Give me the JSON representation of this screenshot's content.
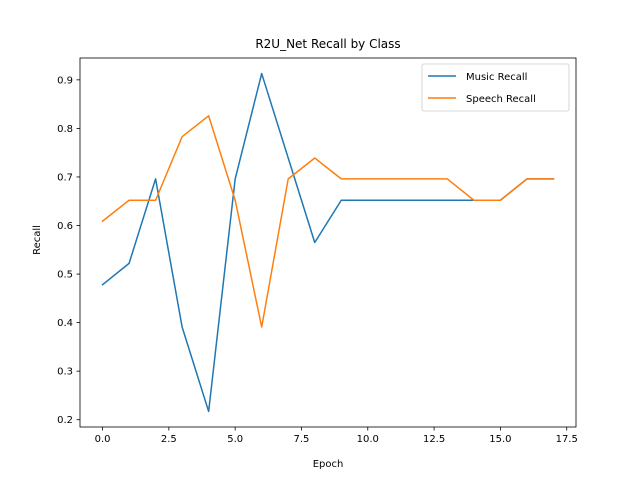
{
  "chart_data": {
    "type": "line",
    "title": "R2U_Net Recall by Class",
    "xlabel": "Epoch",
    "ylabel": "Recall",
    "xlim": [
      -0.85,
      17.85
    ],
    "ylim": [
      0.185,
      0.945
    ],
    "x_ticks": [
      "0.0",
      "2.5",
      "5.0",
      "7.5",
      "10.0",
      "12.5",
      "15.0",
      "17.5"
    ],
    "y_ticks": [
      "0.2",
      "0.3",
      "0.4",
      "0.5",
      "0.6",
      "0.7",
      "0.8",
      "0.9"
    ],
    "grid": false,
    "legend_position": "upper right",
    "x": [
      0,
      1,
      2,
      3,
      4,
      5,
      6,
      7,
      8,
      9,
      10,
      11,
      12,
      13,
      14,
      15,
      16,
      17
    ],
    "series": [
      {
        "name": "Music Recall",
        "color": "#1f77b4",
        "values": [
          0.478,
          0.522,
          0.696,
          0.391,
          0.217,
          0.696,
          0.913,
          0.739,
          0.565,
          0.652,
          0.652,
          0.652,
          0.652,
          0.652,
          0.652,
          0.652,
          0.696,
          0.696
        ]
      },
      {
        "name": "Speech Recall",
        "color": "#ff7f0e",
        "values": [
          0.609,
          0.652,
          0.652,
          0.783,
          0.826,
          0.652,
          0.391,
          0.696,
          0.739,
          0.696,
          0.696,
          0.696,
          0.696,
          0.696,
          0.652,
          0.652,
          0.696,
          0.696
        ]
      }
    ]
  }
}
